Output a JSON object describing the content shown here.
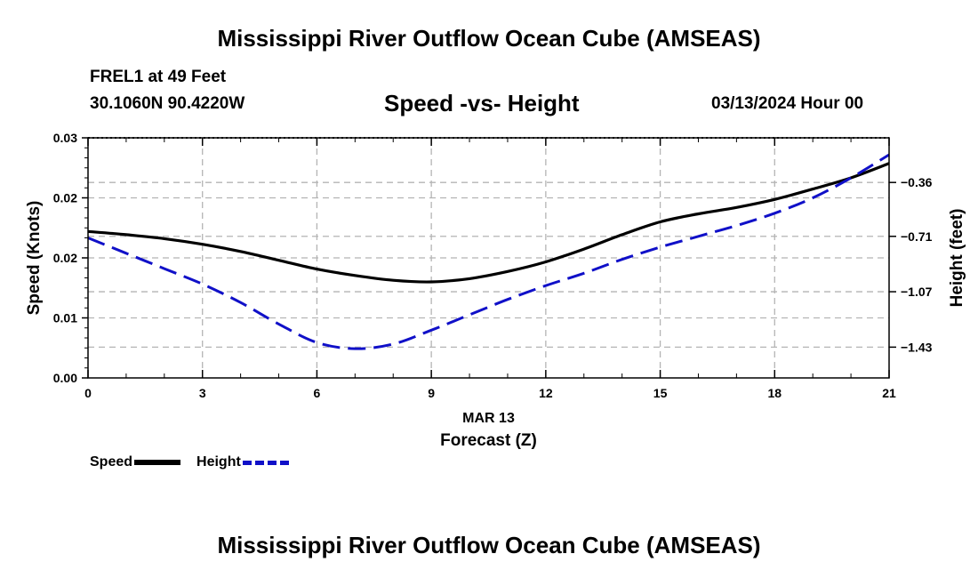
{
  "header": {
    "title": "Mississippi River Outflow Ocean Cube (AMSEAS)",
    "station": "FREL1 at 49 Feet",
    "coords": "30.1060N  90.4220W",
    "subtitle": "Speed -vs- Height",
    "datetime": "03/13/2024 Hour 00"
  },
  "footer": {
    "title": "Mississippi River Outflow Ocean Cube (AMSEAS)"
  },
  "legend": {
    "speed_label": "Speed",
    "height_label": "Height"
  },
  "colors": {
    "speed": "#000000",
    "height": "#1010c8",
    "grid": "#b4b4b4"
  },
  "chart_data": {
    "type": "line",
    "title": "Speed -vs- Height",
    "xlabel": "Forecast (Z)",
    "xsublabel": "MAR 13",
    "ylabel": "Speed (Knots)",
    "y2label": "Height (feet)",
    "xlim": [
      0,
      21
    ],
    "ylim": [
      0,
      0.03
    ],
    "y2lim": [
      -1.63,
      -0.07
    ],
    "xticks": [
      0,
      3,
      6,
      9,
      12,
      15,
      18,
      21
    ],
    "yticks": [
      0,
      0.0075,
      0.015,
      0.0225,
      0.03
    ],
    "ytick_labels": [
      "0.00",
      "0.01",
      "0.02",
      "0.02",
      "0.03"
    ],
    "y2ticks": [
      -1.43,
      -1.07,
      -0.71,
      -0.36
    ],
    "y2tick_labels": [
      "−1.43",
      "−1.07",
      "−0.71",
      "−0.36"
    ],
    "grid": true,
    "series": [
      {
        "name": "Speed",
        "axis": "left",
        "style": "solid",
        "x": [
          0,
          1,
          2,
          3,
          4,
          5,
          6,
          7,
          8,
          9,
          10,
          11,
          12,
          13,
          14,
          15,
          16,
          17,
          18,
          19,
          20,
          21
        ],
        "values": [
          0.0183,
          0.0179,
          0.0174,
          0.0167,
          0.0158,
          0.0147,
          0.0136,
          0.0128,
          0.0122,
          0.012,
          0.0124,
          0.0133,
          0.0145,
          0.0161,
          0.0179,
          0.0195,
          0.0205,
          0.0213,
          0.0223,
          0.0236,
          0.025,
          0.0268
        ]
      },
      {
        "name": "Height",
        "axis": "right",
        "style": "dashed",
        "x": [
          0,
          1,
          2,
          3,
          4,
          5,
          6,
          7,
          8,
          9,
          10,
          11,
          12,
          13,
          14,
          15,
          16,
          17,
          18,
          19,
          20,
          21
        ],
        "values": [
          -0.72,
          -0.82,
          -0.92,
          -1.02,
          -1.14,
          -1.28,
          -1.4,
          -1.44,
          -1.41,
          -1.32,
          -1.22,
          -1.12,
          -1.03,
          -0.95,
          -0.86,
          -0.78,
          -0.71,
          -0.64,
          -0.56,
          -0.46,
          -0.33,
          -0.18
        ]
      }
    ]
  }
}
